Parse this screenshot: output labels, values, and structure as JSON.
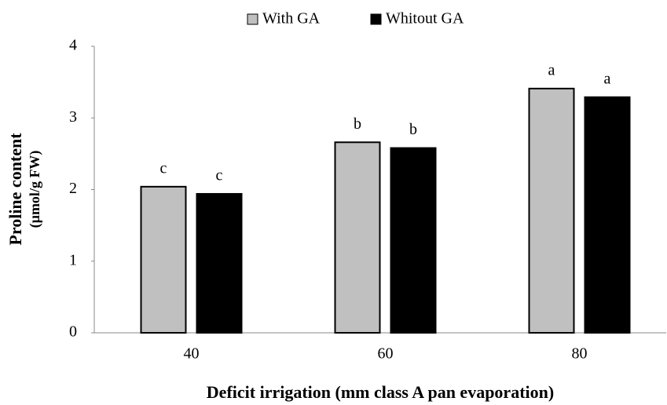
{
  "chart_data": {
    "type": "bar",
    "xlabel": "Deficit irrigation (mm class A pan evaporation)",
    "ylabel": [
      "Proline content",
      "(µmol/g FW)"
    ],
    "categories": [
      "40",
      "60",
      "80"
    ],
    "series": [
      {
        "name": "With GA",
        "color": "#c0c0c0",
        "values": [
          2.04,
          2.66,
          3.41
        ],
        "letters": [
          "c",
          "b",
          "a"
        ]
      },
      {
        "name": "Whitout GA",
        "color": "#000000",
        "values": [
          1.94,
          2.58,
          3.29
        ],
        "letters": [
          "c",
          "b",
          "a"
        ]
      }
    ],
    "ylim": [
      0,
      4
    ],
    "yticks": [
      0,
      1,
      2,
      3,
      4
    ],
    "grid": false,
    "legend": "top"
  }
}
